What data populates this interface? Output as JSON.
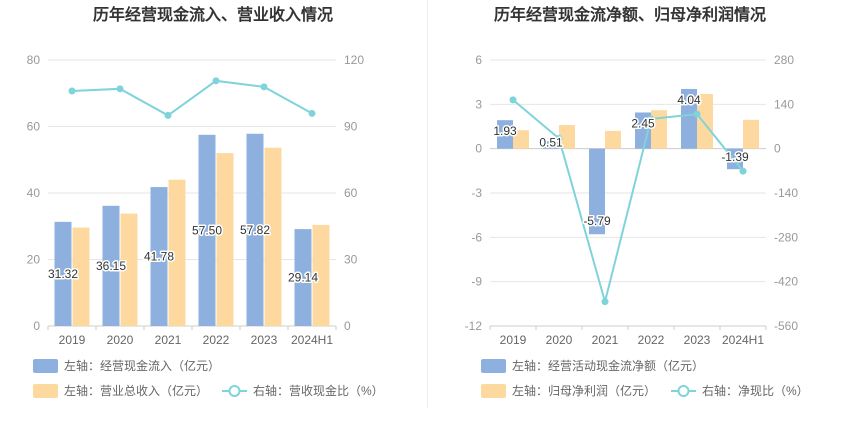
{
  "chart_data": [
    {
      "type": "bar",
      "title": "历年经营现金流入、营业收入情况",
      "categories": [
        "2019",
        "2020",
        "2021",
        "2022",
        "2023",
        "2024H1"
      ],
      "left_axis": {
        "ylim": [
          0,
          80
        ],
        "ticks": [
          0,
          20,
          40,
          60,
          80
        ]
      },
      "right_axis": {
        "ylim": [
          0,
          120
        ],
        "ticks": [
          0,
          30,
          60,
          90,
          120
        ]
      },
      "series": [
        {
          "name": "左轴：经营现金流入（亿元）",
          "axis": "left",
          "kind": "bar",
          "color": "#8eb0df",
          "values": [
            31.32,
            36.15,
            41.78,
            57.5,
            57.82,
            29.14
          ],
          "labels": [
            "31.32",
            "36.15",
            "41.78",
            "57.50",
            "57.82",
            "29.14"
          ]
        },
        {
          "name": "左轴：营业总收入（亿元）",
          "axis": "left",
          "kind": "bar",
          "color": "#fdd9a0",
          "values": [
            29.6,
            33.8,
            44.0,
            52.0,
            53.6,
            30.4
          ]
        },
        {
          "name": "右轴：营收现金比（%）",
          "axis": "right",
          "kind": "line",
          "color": "#7fd3da",
          "values": [
            106.0,
            107.0,
            95.0,
            110.6,
            107.9,
            95.9
          ]
        }
      ]
    },
    {
      "type": "bar",
      "title": "历年经营现金流净额、归母净利润情况",
      "categories": [
        "2019",
        "2020",
        "2021",
        "2022",
        "2023",
        "2024H1"
      ],
      "left_axis": {
        "ylim": [
          -12,
          6
        ],
        "ticks": [
          6,
          3,
          0,
          -3,
          -6,
          -9,
          -12
        ]
      },
      "right_axis": {
        "ylim": [
          -560,
          280
        ],
        "ticks": [
          280,
          140,
          0,
          -140,
          -280,
          -420,
          -560
        ]
      },
      "series": [
        {
          "name": "左轴：经营活动现金流净额（亿元）",
          "axis": "left",
          "kind": "bar",
          "color": "#8eb0df",
          "values": [
            1.93,
            0.51,
            -5.79,
            2.45,
            4.04,
            -1.39
          ],
          "labels": [
            "1.93",
            "0.51",
            "-5.79",
            "2.45",
            "4.04",
            "-1.39"
          ]
        },
        {
          "name": "左轴：归母净利润（亿元）",
          "axis": "left",
          "kind": "bar",
          "color": "#fdd9a0",
          "values": [
            1.25,
            1.6,
            1.2,
            2.6,
            3.7,
            1.95
          ]
        },
        {
          "name": "右轴：净现比（%）",
          "axis": "right",
          "kind": "line",
          "color": "#7fd3da",
          "values": [
            154,
            32,
            -483,
            94,
            109,
            -71
          ]
        }
      ]
    }
  ]
}
